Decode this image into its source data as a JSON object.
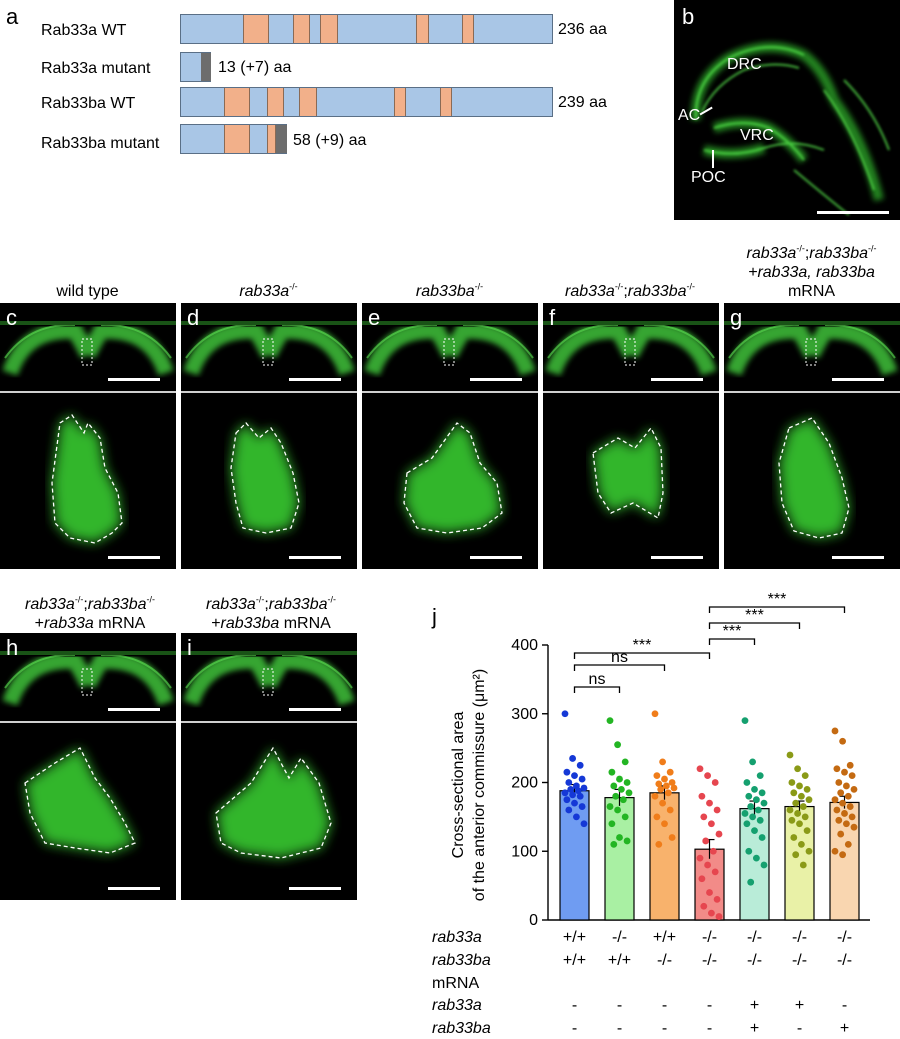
{
  "panel_a": {
    "letter": "a",
    "rows": [
      {
        "label": "Rab33a WT",
        "length": "236 aa"
      },
      {
        "label": "Rab33a mutant",
        "length": "13 (+7) aa"
      },
      {
        "label": "Rab33ba WT",
        "length": "239 aa"
      },
      {
        "label": "Rab33ba mutant",
        "length": "58 (+9) aa"
      }
    ],
    "colors": {
      "protein": "#a9c6e6",
      "domain": "#f2b08a",
      "frameshift": "#6d6d6d"
    }
  },
  "panel_b": {
    "letter": "b",
    "labels": [
      "DRC",
      "AC",
      "VRC",
      "POC"
    ]
  },
  "panels_cg": [
    {
      "letter": "c",
      "title": "wild type"
    },
    {
      "letter": "d",
      "title": "rab33a"
    },
    {
      "letter": "e",
      "title": "rab33ba"
    },
    {
      "letter": "f",
      "title": "rab33a",
      "title2": "rab33ba"
    },
    {
      "letter": "g",
      "title": "rab33a",
      "title2": "rab33ba",
      "line2": "+rab33a, rab33ba",
      "line3": "mRNA"
    }
  ],
  "panels_hi": [
    {
      "letter": "h",
      "title": "rab33a",
      "title2": "rab33ba",
      "line2a": "+",
      "line2b": "rab33a",
      "line2c": " mRNA"
    },
    {
      "letter": "i",
      "title": "rab33a",
      "title2": "rab33ba",
      "line2a": "+",
      "line2b": "rab33ba",
      "line2c": " mRNA"
    }
  ],
  "sup_minus": "-/-",
  "semicolon": ";",
  "panel_j": {
    "letter": "j",
    "sig": {
      "ns1": "ns",
      "ns2": "ns",
      "s1": "***",
      "s2": "***",
      "s3": "***",
      "s4": "***"
    },
    "row_labels": {
      "rab33a": "rab33a",
      "rab33ba": "rab33ba",
      "mrna": "mRNA",
      "mrna_a": "rab33a",
      "mrna_ba": "rab33ba"
    },
    "genotype_rows": {
      "rab33a": [
        "+/+",
        "-/-",
        "+/+",
        "-/-",
        "-/-",
        "-/-",
        "-/-"
      ],
      "rab33ba": [
        "+/+",
        "+/+",
        "-/-",
        "-/-",
        "-/-",
        "-/-",
        "-/-"
      ],
      "mrna_a": [
        "-",
        "-",
        "-",
        "-",
        "+",
        "+",
        "-"
      ],
      "mrna_ba": [
        "-",
        "-",
        "-",
        "-",
        "+",
        "-",
        "+"
      ]
    }
  },
  "chart_data": {
    "type": "bar",
    "ylabel": "Cross-sectional area of the anterior commissure (μm²)",
    "ylim": [
      0,
      400
    ],
    "yticks": [
      0,
      100,
      200,
      300,
      400
    ],
    "categories": [
      "+/+ ; +/+",
      "-/- ; +/+",
      "+/+ ; -/-",
      "-/- ; -/-",
      "-/- ; -/- + rab33a + rab33ba mRNA",
      "-/- ; -/- + rab33a mRNA",
      "-/- ; -/- + rab33ba mRNA"
    ],
    "values": [
      188,
      178,
      185,
      103,
      162,
      165,
      171
    ],
    "errors": [
      9,
      12,
      10,
      14,
      11,
      8,
      9
    ],
    "fill_colors": [
      "#6f9cf2",
      "#a9f0a3",
      "#f8b26c",
      "#f28b88",
      "#b9ecd8",
      "#e9f1a7",
      "#f9d6b0"
    ],
    "point_colors": [
      "#1538d6",
      "#23b523",
      "#f07d1a",
      "#e6464f",
      "#15a06f",
      "#8a9a17",
      "#c46a12"
    ],
    "points": [
      [
        300,
        235,
        225,
        215,
        210,
        205,
        200,
        195,
        192,
        190,
        188,
        185,
        182,
        180,
        175,
        170,
        165,
        160,
        150,
        140
      ],
      [
        290,
        255,
        230,
        215,
        205,
        200,
        195,
        190,
        185,
        180,
        175,
        165,
        160,
        150,
        140,
        120,
        115,
        110
      ],
      [
        300,
        230,
        215,
        210,
        205,
        200,
        198,
        195,
        192,
        190,
        185,
        180,
        170,
        160,
        150,
        140,
        120,
        110
      ],
      [
        220,
        210,
        200,
        180,
        170,
        160,
        150,
        140,
        125,
        115,
        100,
        90,
        80,
        70,
        60,
        40,
        30,
        20,
        10,
        5
      ],
      [
        290,
        230,
        210,
        200,
        190,
        185,
        180,
        175,
        170,
        165,
        160,
        155,
        150,
        145,
        140,
        130,
        120,
        100,
        90,
        80,
        55
      ],
      [
        240,
        220,
        210,
        200,
        195,
        190,
        185,
        180,
        175,
        170,
        165,
        160,
        155,
        150,
        145,
        140,
        130,
        120,
        110,
        100,
        95,
        80
      ],
      [
        275,
        260,
        225,
        220,
        215,
        210,
        200,
        195,
        190,
        185,
        180,
        175,
        170,
        165,
        160,
        155,
        150,
        145,
        140,
        135,
        125,
        110,
        100,
        95
      ]
    ]
  }
}
